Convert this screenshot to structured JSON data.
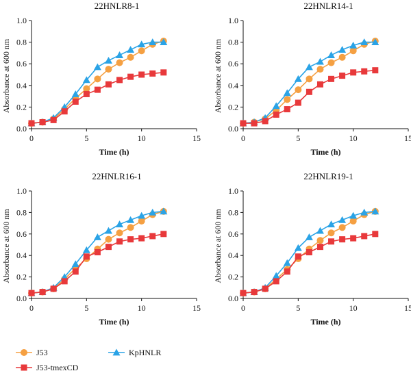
{
  "colors": {
    "J53": "#f5a042",
    "J53-tmexCD": "#e8393b",
    "KpHNLR": "#2aa3e6"
  },
  "legend": [
    {
      "label": "J53",
      "marker": "circle",
      "color": "#f5a042"
    },
    {
      "label": "J53-tmexCD",
      "marker": "square",
      "color": "#e8393b"
    },
    {
      "label": "KpHNLR",
      "marker": "triangle",
      "color": "#2aa3e6"
    }
  ],
  "chart_data": [
    {
      "type": "line",
      "title": "22HNLR8-1",
      "xlabel": "Time (h)",
      "ylabel": "Absorbance at 600 nm",
      "xlim": [
        0,
        15
      ],
      "ylim": [
        0,
        1.0
      ],
      "xticks": [
        "0",
        "5",
        "10",
        "15"
      ],
      "yticks": [
        "0.0",
        "0.2",
        "0.4",
        "0.6",
        "0.8",
        "1.0"
      ],
      "x": [
        0,
        1,
        2,
        3,
        4,
        5,
        6,
        7,
        8,
        9,
        10,
        11,
        12
      ],
      "series": [
        {
          "name": "J53",
          "marker": "circle",
          "values": [
            0.05,
            0.06,
            0.09,
            0.18,
            0.28,
            0.37,
            0.46,
            0.55,
            0.61,
            0.66,
            0.72,
            0.78,
            0.81
          ]
        },
        {
          "name": "J53-tmexCD",
          "marker": "square",
          "values": [
            0.05,
            0.06,
            0.08,
            0.16,
            0.25,
            0.32,
            0.36,
            0.41,
            0.45,
            0.48,
            0.5,
            0.51,
            0.52
          ]
        },
        {
          "name": "KpHNLR",
          "marker": "triangle",
          "values": [
            0.05,
            0.06,
            0.1,
            0.2,
            0.32,
            0.45,
            0.57,
            0.63,
            0.68,
            0.73,
            0.78,
            0.8,
            0.8
          ]
        }
      ]
    },
    {
      "type": "line",
      "title": "22HNLR14-1",
      "xlabel": "Time (h)",
      "ylabel": "Absorbance at 600 nm",
      "xlim": [
        0,
        15
      ],
      "ylim": [
        0,
        1.0
      ],
      "xticks": [
        "0",
        "5",
        "10",
        "15"
      ],
      "yticks": [
        "0.0",
        "0.2",
        "0.4",
        "0.6",
        "0.8",
        "1.0"
      ],
      "x": [
        0,
        1,
        2,
        3,
        4,
        5,
        6,
        7,
        8,
        9,
        10,
        11,
        12
      ],
      "series": [
        {
          "name": "J53",
          "marker": "circle",
          "values": [
            0.05,
            0.06,
            0.09,
            0.17,
            0.27,
            0.36,
            0.46,
            0.55,
            0.61,
            0.66,
            0.72,
            0.78,
            0.81
          ]
        },
        {
          "name": "J53-tmexCD",
          "marker": "square",
          "values": [
            0.05,
            0.05,
            0.07,
            0.13,
            0.18,
            0.24,
            0.34,
            0.41,
            0.46,
            0.49,
            0.52,
            0.53,
            0.54
          ]
        },
        {
          "name": "KpHNLR",
          "marker": "triangle",
          "values": [
            0.05,
            0.06,
            0.1,
            0.21,
            0.33,
            0.46,
            0.57,
            0.62,
            0.68,
            0.73,
            0.77,
            0.8,
            0.8
          ]
        }
      ]
    },
    {
      "type": "line",
      "title": "22HNLR16-1",
      "xlabel": "Time (h)",
      "ylabel": "Absorbance at 600 nm",
      "xlim": [
        0,
        15
      ],
      "ylim": [
        0,
        1.0
      ],
      "xticks": [
        "0",
        "5",
        "10",
        "15"
      ],
      "yticks": [
        "0.0",
        "0.2",
        "0.4",
        "0.6",
        "0.8",
        "1.0"
      ],
      "x": [
        0,
        1,
        2,
        3,
        4,
        5,
        6,
        7,
        8,
        9,
        10,
        11,
        12
      ],
      "series": [
        {
          "name": "J53",
          "marker": "circle",
          "values": [
            0.05,
            0.06,
            0.09,
            0.18,
            0.28,
            0.37,
            0.46,
            0.55,
            0.61,
            0.66,
            0.72,
            0.78,
            0.81
          ]
        },
        {
          "name": "J53-tmexCD",
          "marker": "square",
          "values": [
            0.05,
            0.06,
            0.09,
            0.16,
            0.25,
            0.39,
            0.43,
            0.48,
            0.53,
            0.55,
            0.56,
            0.58,
            0.6
          ]
        },
        {
          "name": "KpHNLR",
          "marker": "triangle",
          "values": [
            0.05,
            0.06,
            0.1,
            0.2,
            0.32,
            0.45,
            0.57,
            0.63,
            0.69,
            0.73,
            0.77,
            0.8,
            0.81
          ]
        }
      ]
    },
    {
      "type": "line",
      "title": "22HNLR19-1",
      "xlabel": "Time (h)",
      "ylabel": "Absorbance at 600 nm",
      "xlim": [
        0,
        15
      ],
      "ylim": [
        0,
        1.0
      ],
      "xticks": [
        "0",
        "5",
        "10",
        "15"
      ],
      "yticks": [
        "0.0",
        "0.2",
        "0.4",
        "0.6",
        "0.8",
        "1.0"
      ],
      "x": [
        0,
        1,
        2,
        3,
        4,
        5,
        6,
        7,
        8,
        9,
        10,
        11,
        12
      ],
      "series": [
        {
          "name": "J53",
          "marker": "circle",
          "values": [
            0.05,
            0.06,
            0.09,
            0.18,
            0.27,
            0.37,
            0.46,
            0.54,
            0.61,
            0.66,
            0.72,
            0.78,
            0.81
          ]
        },
        {
          "name": "J53-tmexCD",
          "marker": "square",
          "values": [
            0.05,
            0.06,
            0.09,
            0.16,
            0.25,
            0.39,
            0.43,
            0.48,
            0.53,
            0.55,
            0.56,
            0.58,
            0.6
          ]
        },
        {
          "name": "KpHNLR",
          "marker": "triangle",
          "values": [
            0.05,
            0.06,
            0.1,
            0.21,
            0.33,
            0.47,
            0.57,
            0.63,
            0.69,
            0.73,
            0.77,
            0.8,
            0.81
          ]
        }
      ]
    }
  ]
}
